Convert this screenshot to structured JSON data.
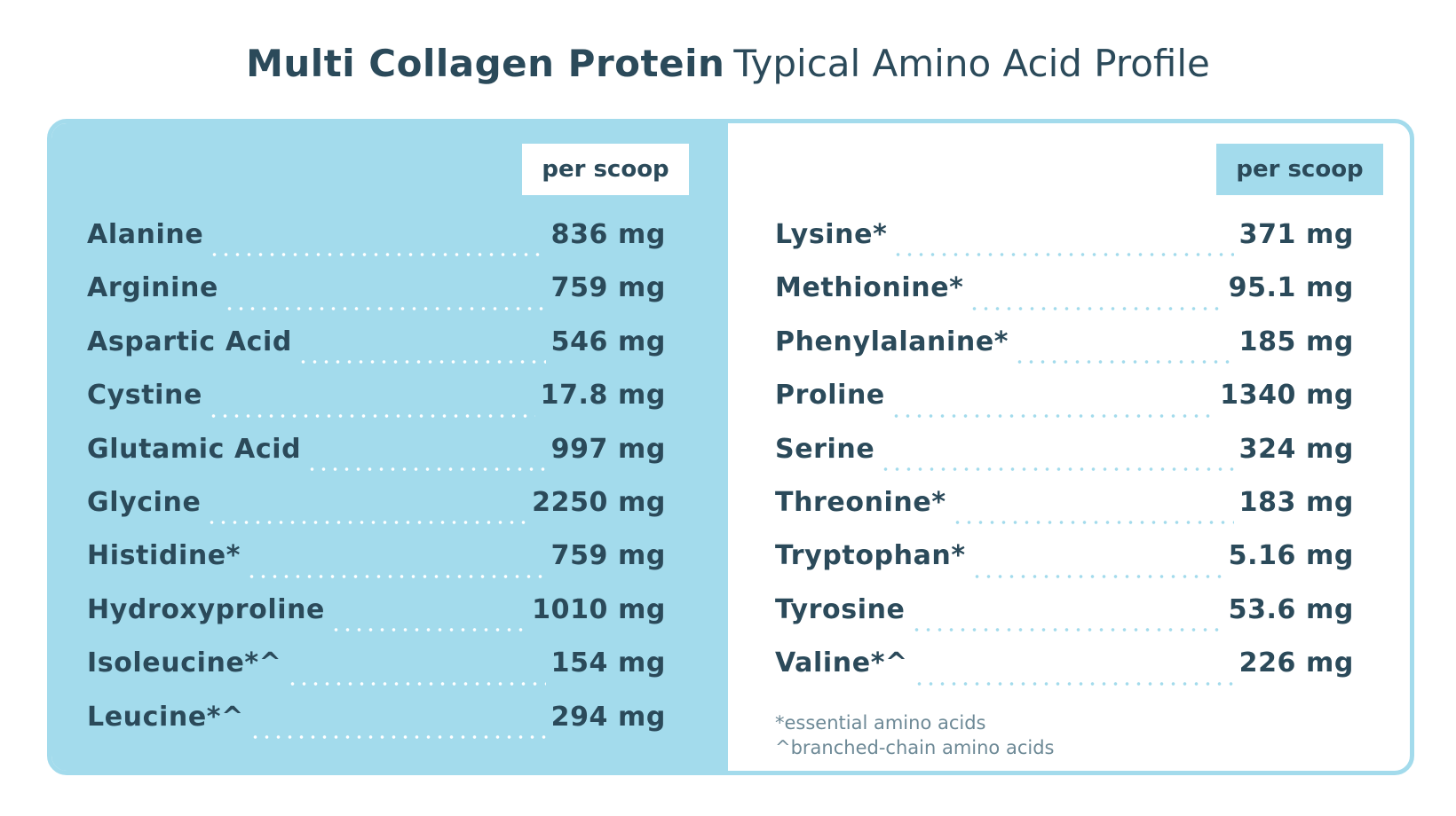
{
  "header": {
    "title_bold": "Multi Collagen Protein",
    "title_light": "Typical Amino Acid Profile"
  },
  "colors": {
    "accent": "#a3dbec",
    "text": "#2b4a5a",
    "footnote": "#6d8996",
    "background": "#ffffff"
  },
  "left_column": {
    "header_label": "per scoop",
    "rows": [
      {
        "name": "Alanine",
        "amount": "836 mg"
      },
      {
        "name": "Arginine",
        "amount": "759 mg"
      },
      {
        "name": "Aspartic Acid",
        "amount": "546 mg"
      },
      {
        "name": "Cystine",
        "amount": "17.8 mg"
      },
      {
        "name": "Glutamic Acid",
        "amount": "997 mg"
      },
      {
        "name": "Glycine",
        "amount": "2250 mg"
      },
      {
        "name": "Histidine*",
        "amount": "759 mg"
      },
      {
        "name": "Hydroxyproline",
        "amount": "1010 mg"
      },
      {
        "name": "Isoleucine*^",
        "amount": "154 mg"
      },
      {
        "name": "Leucine*^",
        "amount": "294 mg"
      }
    ]
  },
  "right_column": {
    "header_label": "per scoop",
    "rows": [
      {
        "name": "Lysine*",
        "amount": "371 mg"
      },
      {
        "name": "Methionine*",
        "amount": "95.1 mg"
      },
      {
        "name": "Phenylalanine*",
        "amount": "185 mg"
      },
      {
        "name": "Proline",
        "amount": "1340 mg"
      },
      {
        "name": "Serine",
        "amount": "324 mg"
      },
      {
        "name": "Threonine*",
        "amount": "183 mg"
      },
      {
        "name": "Tryptophan*",
        "amount": "5.16 mg"
      },
      {
        "name": "Tyrosine",
        "amount": "53.6 mg"
      },
      {
        "name": "Valine*^",
        "amount": "226 mg"
      }
    ]
  },
  "footnotes": {
    "essential": "*essential amino acids",
    "bcaa": "^branched-chain amino acids"
  }
}
